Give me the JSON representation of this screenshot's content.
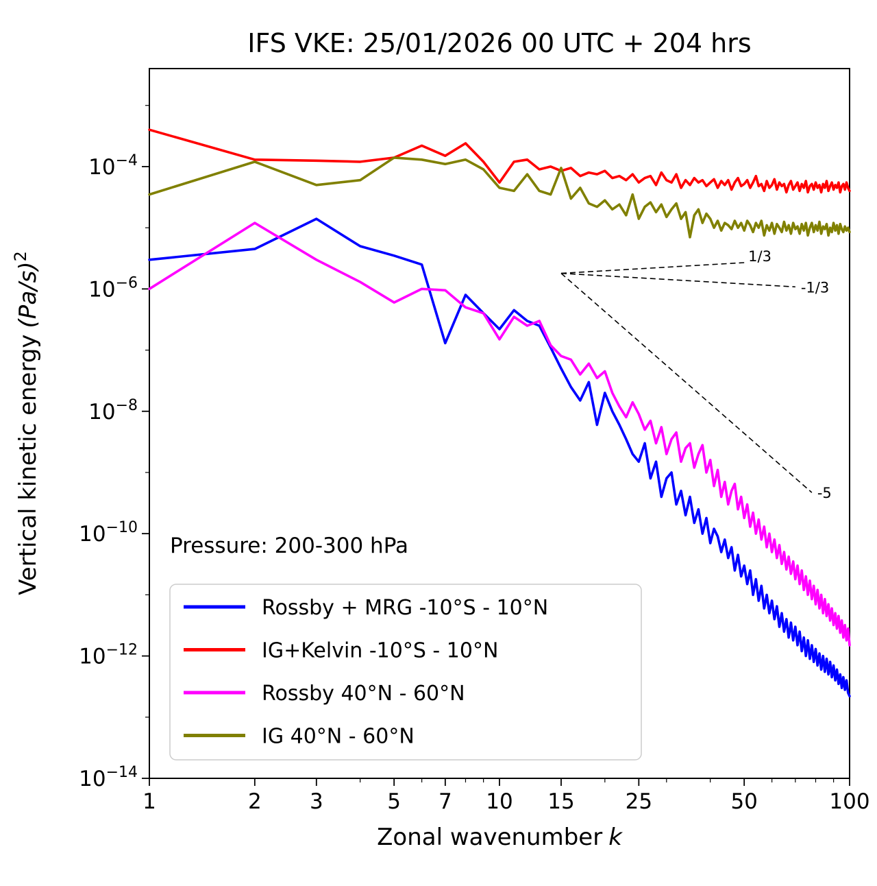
{
  "title": "IFS VKE: 25/01/2026 00 UTC + 204 hrs",
  "annotation": "Pressure: 200-300 hPa",
  "chart_data": {
    "type": "line",
    "title": "IFS VKE: 25/01/2026 00 UTC + 204 hrs",
    "xlabel_main": "Zonal wavenumber",
    "xlabel_italic": "k",
    "ylabel_main": "Vertical kinetic energy",
    "ylabel_math": "(Pa/s)",
    "ylabel_sup": "2",
    "x_scale": "log",
    "y_scale": "log",
    "xlim": [
      1,
      100
    ],
    "ylim": [
      1e-14,
      0.004
    ],
    "x_ticks": [
      1,
      2,
      3,
      5,
      7,
      10,
      15,
      25,
      50,
      100
    ],
    "x_minor_ticks": [
      4,
      6,
      8,
      9,
      20,
      30,
      40,
      60,
      70,
      80,
      90
    ],
    "y_tick_exponents": [
      -4,
      -6,
      -8,
      -10,
      -12,
      -14
    ],
    "y_minor_tick_exponents": [
      -3,
      -5,
      -7,
      -9,
      -11,
      -13
    ],
    "grid": false,
    "legend_position": "lower left",
    "x": [
      1,
      2,
      3,
      4,
      5,
      6,
      7,
      8,
      9,
      10,
      11,
      12,
      13,
      14,
      15,
      16,
      17,
      18,
      19,
      20,
      21,
      22,
      23,
      24,
      25,
      26,
      27,
      28,
      29,
      30,
      31,
      32,
      33,
      34,
      35,
      36,
      37,
      38,
      39,
      40,
      41,
      42,
      43,
      44,
      45,
      46,
      47,
      48,
      49,
      50,
      51,
      52,
      53,
      54,
      55,
      56,
      57,
      58,
      59,
      60,
      61,
      62,
      63,
      64,
      65,
      66,
      67,
      68,
      69,
      70,
      71,
      72,
      73,
      74,
      75,
      76,
      77,
      78,
      79,
      80,
      81,
      82,
      83,
      84,
      85,
      86,
      87,
      88,
      89,
      90,
      91,
      92,
      93,
      94,
      95,
      96,
      97,
      98,
      99,
      100
    ],
    "series": [
      {
        "name": "Rossby + MRG -10°S - 10°N",
        "color": "#0000ff",
        "values": [
          3e-06,
          4.5e-06,
          1.4e-05,
          5e-06,
          3.5e-06,
          2.5e-06,
          1.3e-07,
          8e-07,
          4e-07,
          2.2e-07,
          4.5e-07,
          3e-07,
          2.5e-07,
          1.1e-07,
          5e-08,
          2.5e-08,
          1.5e-08,
          3e-08,
          6e-09,
          2e-08,
          1e-08,
          6e-09,
          3.5e-09,
          2e-09,
          1.5e-09,
          3e-09,
          8e-10,
          1.5e-09,
          4e-10,
          8e-10,
          1e-09,
          3e-10,
          5e-10,
          2e-10,
          4e-10,
          1.5e-10,
          2.5e-10,
          1e-10,
          1.8e-10,
          7e-11,
          1.2e-10,
          9e-11,
          5e-11,
          8e-11,
          4e-11,
          6e-11,
          2.5e-11,
          4.5e-11,
          2e-11,
          3e-11,
          1.5e-11,
          2.5e-11,
          1e-11,
          1.8e-11,
          8e-12,
          1.4e-11,
          6e-12,
          1e-11,
          5e-12,
          8e-12,
          4e-12,
          6.5e-12,
          3e-12,
          5e-12,
          2.5e-12,
          4e-12,
          2e-12,
          3.5e-12,
          1.8e-12,
          3e-12,
          1.5e-12,
          2.5e-12,
          1.2e-12,
          2e-12,
          1e-12,
          1.8e-12,
          9e-13,
          1.5e-12,
          8e-13,
          1.3e-12,
          7e-13,
          1.1e-12,
          6e-13,
          1e-12,
          5.5e-13,
          9e-13,
          5e-13,
          8e-13,
          4.5e-13,
          7e-13,
          4e-13,
          6e-13,
          3.5e-13,
          5e-13,
          3e-13,
          4.5e-13,
          2.8e-13,
          4e-13,
          2.5e-13,
          2.2e-13
        ]
      },
      {
        "name": "IG+Kelvin -10°S - 10°N",
        "color": "#ff0000",
        "values": [
          0.0004,
          0.00013,
          0.000125,
          0.00012,
          0.00014,
          0.00022,
          0.00015,
          0.00024,
          0.00012,
          5.5e-05,
          0.00012,
          0.00013,
          9e-05,
          0.0001,
          8.5e-05,
          9.5e-05,
          7e-05,
          8e-05,
          7.5e-05,
          8.5e-05,
          6.5e-05,
          7e-05,
          6e-05,
          7.5e-05,
          5.5e-05,
          6.5e-05,
          7e-05,
          5e-05,
          8e-05,
          6e-05,
          5.5e-05,
          7.5e-05,
          4.5e-05,
          6e-05,
          5e-05,
          6.5e-05,
          5.5e-05,
          6e-05,
          4.8e-05,
          5.5e-05,
          6.2e-05,
          4.5e-05,
          5.8e-05,
          5e-05,
          6e-05,
          4.2e-05,
          5.5e-05,
          6.5e-05,
          4.8e-05,
          5.2e-05,
          6e-05,
          4.5e-05,
          5.5e-05,
          7e-05,
          4.8e-05,
          5.2e-05,
          4e-05,
          5.8e-05,
          4.5e-05,
          5e-05,
          6.2e-05,
          4.2e-05,
          5.5e-05,
          4.8e-05,
          5.2e-05,
          3.8e-05,
          5e-05,
          5.8e-05,
          4.2e-05,
          4.8e-05,
          5.5e-05,
          4e-05,
          5.2e-05,
          4.5e-05,
          5.8e-05,
          3.8e-05,
          4.8e-05,
          5.2e-05,
          4.2e-05,
          5.5e-05,
          4.5e-05,
          5e-05,
          3.8e-05,
          5.2e-05,
          4.5e-05,
          5.8e-05,
          4e-05,
          4.8e-05,
          5.5e-05,
          4.2e-05,
          5e-05,
          4.5e-05,
          5.5e-05,
          3.8e-05,
          4.8e-05,
          5.2e-05,
          4.2e-05,
          5.5e-05,
          4.5e-05,
          4e-05
        ]
      },
      {
        "name": "Rossby 40°N - 60°N",
        "color": "#ff00ff",
        "values": [
          1e-06,
          1.2e-05,
          3e-06,
          1.3e-06,
          6e-07,
          1e-06,
          9.5e-07,
          5e-07,
          4e-07,
          1.5e-07,
          3.5e-07,
          2.5e-07,
          3e-07,
          1.2e-07,
          8e-08,
          7e-08,
          4e-08,
          6e-08,
          3.5e-08,
          4.5e-08,
          2e-08,
          1.2e-08,
          8e-09,
          1.4e-08,
          9e-09,
          5e-09,
          7e-09,
          3e-09,
          5.5e-09,
          2e-09,
          3.5e-09,
          4.5e-09,
          1.5e-09,
          2.5e-09,
          3e-09,
          1.2e-09,
          2e-09,
          2.8e-09,
          1e-09,
          1.6e-09,
          6e-10,
          1.1e-09,
          4e-10,
          7e-10,
          3e-10,
          5e-10,
          6.5e-10,
          2.5e-10,
          4e-10,
          1.8e-10,
          3e-10,
          1.3e-10,
          2.2e-10,
          1e-10,
          1.7e-10,
          8e-11,
          1.3e-10,
          6e-11,
          1e-10,
          5e-11,
          8e-11,
          4e-11,
          6.5e-11,
          3.2e-11,
          5e-11,
          2.6e-11,
          4.2e-11,
          2.2e-11,
          3.5e-11,
          1.8e-11,
          3e-11,
          1.5e-11,
          2.5e-11,
          1.2e-11,
          2e-11,
          1e-11,
          1.7e-11,
          8.5e-12,
          1.4e-11,
          7e-12,
          1.2e-11,
          6e-12,
          1e-11,
          5e-12,
          8.5e-12,
          4.5e-12,
          7e-12,
          3.8e-12,
          6e-12,
          3.2e-12,
          5e-12,
          2.8e-12,
          4.5e-12,
          2.4e-12,
          3.8e-12,
          2e-12,
          3.2e-12,
          1.8e-12,
          2.8e-12,
          1.5e-12
        ]
      },
      {
        "name": "IG 40°N - 60°N",
        "color": "#808000",
        "values": [
          3.5e-05,
          0.00012,
          5e-05,
          6e-05,
          0.00014,
          0.00013,
          0.00011,
          0.00013,
          9e-05,
          4.5e-05,
          4e-05,
          7.5e-05,
          4e-05,
          3.5e-05,
          9.5e-05,
          3e-05,
          4.5e-05,
          2.5e-05,
          2.2e-05,
          2.8e-05,
          2e-05,
          2.4e-05,
          1.6e-05,
          3.5e-05,
          1.4e-05,
          2.2e-05,
          2.6e-05,
          1.8e-05,
          2.4e-05,
          1.5e-05,
          2e-05,
          2.5e-05,
          1.4e-05,
          1.8e-05,
          7e-06,
          1.6e-05,
          2e-05,
          1.2e-05,
          1.7e-05,
          1.4e-05,
          1e-05,
          1.3e-05,
          9e-06,
          1.2e-05,
          1.1e-05,
          9.5e-06,
          1.3e-05,
          1e-05,
          1.2e-05,
          9e-06,
          1.3e-05,
          1.1e-05,
          8.5e-06,
          1.2e-05,
          1e-05,
          1.3e-05,
          7.5e-06,
          1.1e-05,
          9e-06,
          1.2e-05,
          8e-06,
          1.15e-05,
          1e-05,
          8.5e-06,
          1.25e-05,
          9e-06,
          1.1e-05,
          8e-06,
          1.2e-05,
          9.5e-06,
          1.05e-05,
          8e-06,
          1.15e-05,
          9e-06,
          1.2e-05,
          7.5e-06,
          1e-05,
          1.2e-05,
          8.5e-06,
          1.1e-05,
          9e-06,
          1.25e-05,
          8e-06,
          1.05e-05,
          9.5e-06,
          1.15e-05,
          7.5e-06,
          1e-05,
          8.5e-06,
          1.2e-05,
          9e-06,
          1.1e-05,
          8e-06,
          1.15e-05,
          9.5e-06,
          8.5e-06,
          1.05e-05,
          9e-06,
          1e-05,
          8.5e-06
        ]
      }
    ],
    "reference_lines": [
      {
        "label": "1/3",
        "x1": 15,
        "y1": 1.8e-06,
        "x2": 50,
        "y2": 2.69e-06,
        "dx": 6,
        "dy": -2
      },
      {
        "label": "-1/3",
        "x1": 15,
        "y1": 1.8e-06,
        "x2": 70,
        "y2": 1.08e-06,
        "dx": 8,
        "dy": 8
      },
      {
        "label": "-5",
        "x1": 15,
        "y1": 1.8e-06,
        "x2": 78,
        "y2": 4.7e-10,
        "dx": 8,
        "dy": 8
      }
    ]
  }
}
